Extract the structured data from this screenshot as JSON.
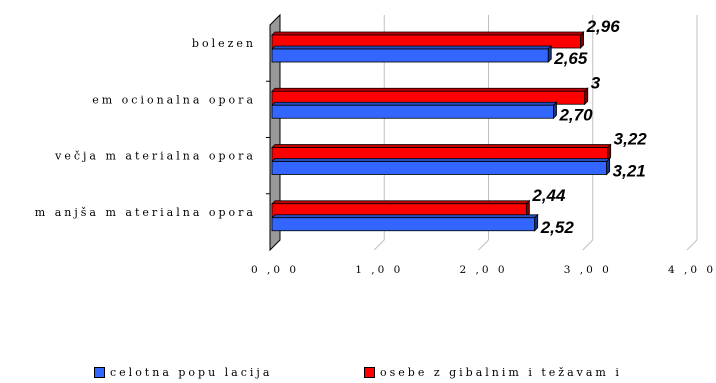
{
  "chart_data": {
    "type": "bar",
    "orientation": "horizontal",
    "categories": [
      "bolezen",
      "em ocionalna opora",
      "večja m aterialna opora",
      "m anjša m aterialna opora"
    ],
    "series": [
      {
        "name": "osebe z gibalnim i težavam i",
        "values": [
          2.96,
          3,
          3.22,
          2.44
        ],
        "labels": [
          "2,96",
          "3",
          "3,22",
          "2,44"
        ],
        "color": "#ff0000"
      },
      {
        "name": "celotna populacija",
        "values": [
          2.65,
          2.7,
          3.21,
          2.52
        ],
        "labels": [
          "2,65",
          "2,70",
          "3,21",
          "2,52"
        ],
        "color": "#3366ff"
      }
    ],
    "xlim": [
      0,
      4
    ],
    "xticks": [
      0,
      1,
      2,
      3,
      4
    ],
    "xtick_labels": [
      "0 ,0 0",
      "1 ,0 0",
      "2 ,0 0",
      "3 ,0 0",
      "4 ,0 0"
    ],
    "grid": "vertical",
    "legend_position": "bottom",
    "style": "3d"
  },
  "legend": {
    "items": [
      {
        "label": "celotna popu lacija",
        "color": "#3366ff"
      },
      {
        "label": "osebe z gibalnim i težavam i",
        "color": "#ff0000"
      }
    ]
  }
}
